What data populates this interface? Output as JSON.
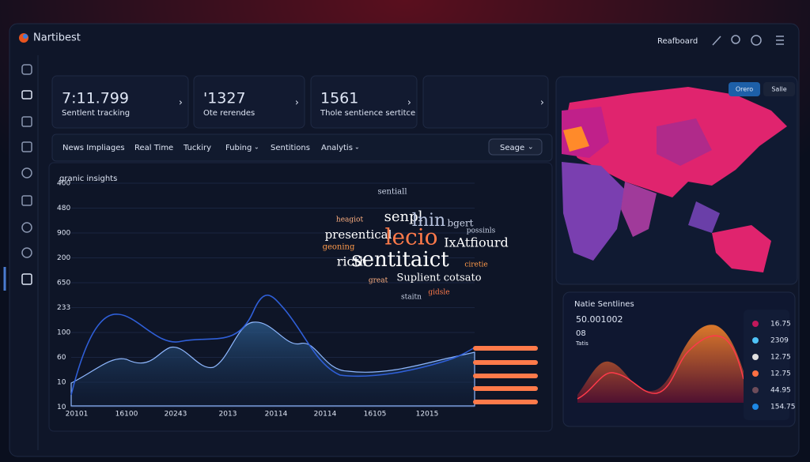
{
  "app": {
    "name": "Nartibest",
    "nav_link": "Reafboard"
  },
  "stats": [
    {
      "value": "7:11.799",
      "label": "Sentlent tracking"
    },
    {
      "value": "'1327",
      "label": "Ote rerendes"
    },
    {
      "value": "1561",
      "label": "Thole sentience sertitce"
    }
  ],
  "tabs": [
    "News Impliages",
    "Real Time",
    "Tuckiry",
    "Fubing",
    "Sentitions",
    "Analytis"
  ],
  "dropdown": "Seage",
  "chart": {
    "title": "granic insights",
    "y_labels": [
      "400",
      "480",
      "900",
      "200",
      "650",
      "233",
      "100",
      "60",
      "10",
      "10"
    ],
    "x_labels": [
      "20101",
      "16100",
      "20243",
      "2013",
      "20114",
      "20114",
      "16105",
      "12015"
    ]
  },
  "word_cloud": [
    "sentiall",
    "senpl",
    "lnin",
    "presentical",
    "lecio",
    "IxAtfiourd",
    "sentitaict",
    "ricth",
    "Suplient cotsato",
    "geoning",
    "possinls",
    "heagiot",
    "bgert",
    "ciretie",
    "great",
    "staitn",
    "gidsle"
  ],
  "map": {
    "buttons": [
      "Orero",
      "Salle"
    ]
  },
  "sentiment": {
    "title": "Natie Sentlines",
    "value": "50.001002",
    "sub": "08",
    "note": "Tatis",
    "legend": [
      {
        "value": "16.75",
        "color": "#c2185b"
      },
      {
        "value": "2309",
        "color": "#4fc3f7"
      },
      {
        "value": "12.75",
        "color": "#e0e0e0"
      },
      {
        "value": "12.75",
        "color": "#ff7043"
      },
      {
        "value": "44.95",
        "color": "#6d4c5a"
      },
      {
        "value": "154.75",
        "color": "#1e88e5"
      }
    ]
  }
}
